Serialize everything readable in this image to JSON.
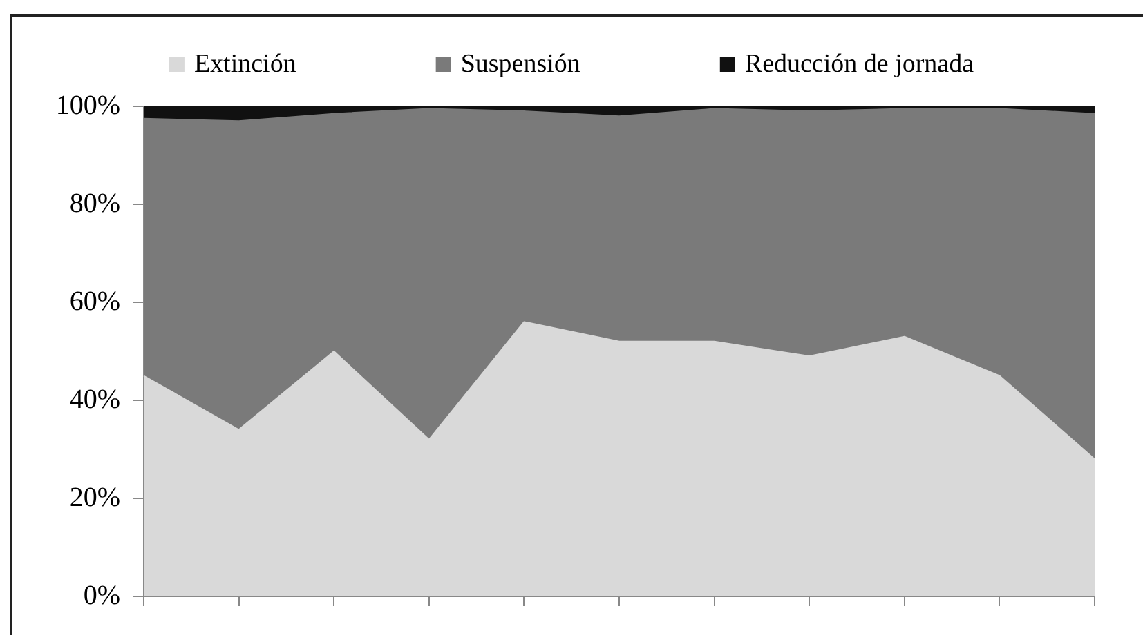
{
  "chart_data": {
    "type": "area",
    "stacked": true,
    "categories": [
      null,
      null,
      null,
      null,
      null,
      null,
      null,
      null,
      null,
      null,
      null
    ],
    "series": [
      {
        "name": "Extinción",
        "color": "#d9d9d9",
        "values": [
          45,
          34,
          50,
          32,
          56,
          52,
          52,
          49,
          53,
          45,
          28
        ]
      },
      {
        "name": "Suspensión",
        "color": "#7a7a7a",
        "values": [
          52.5,
          63,
          48.5,
          67.5,
          43,
          46,
          47.5,
          50,
          46.5,
          54.5,
          70.5
        ]
      },
      {
        "name": "Reducción de jornada",
        "color": "#111111",
        "values": [
          2.5,
          3,
          1.5,
          0.5,
          1,
          2,
          0.5,
          1,
          0.5,
          0.5,
          1.5
        ]
      }
    ],
    "ylim": [
      0,
      100
    ],
    "yticks": [
      {
        "value": 0,
        "label": "0%"
      },
      {
        "value": 20,
        "label": "20%"
      },
      {
        "value": 40,
        "label": "40%"
      },
      {
        "value": 60,
        "label": "60%"
      },
      {
        "value": 80,
        "label": "80%"
      },
      {
        "value": 100,
        "label": "100%"
      }
    ],
    "legend": "top",
    "tick_labels": "y"
  }
}
